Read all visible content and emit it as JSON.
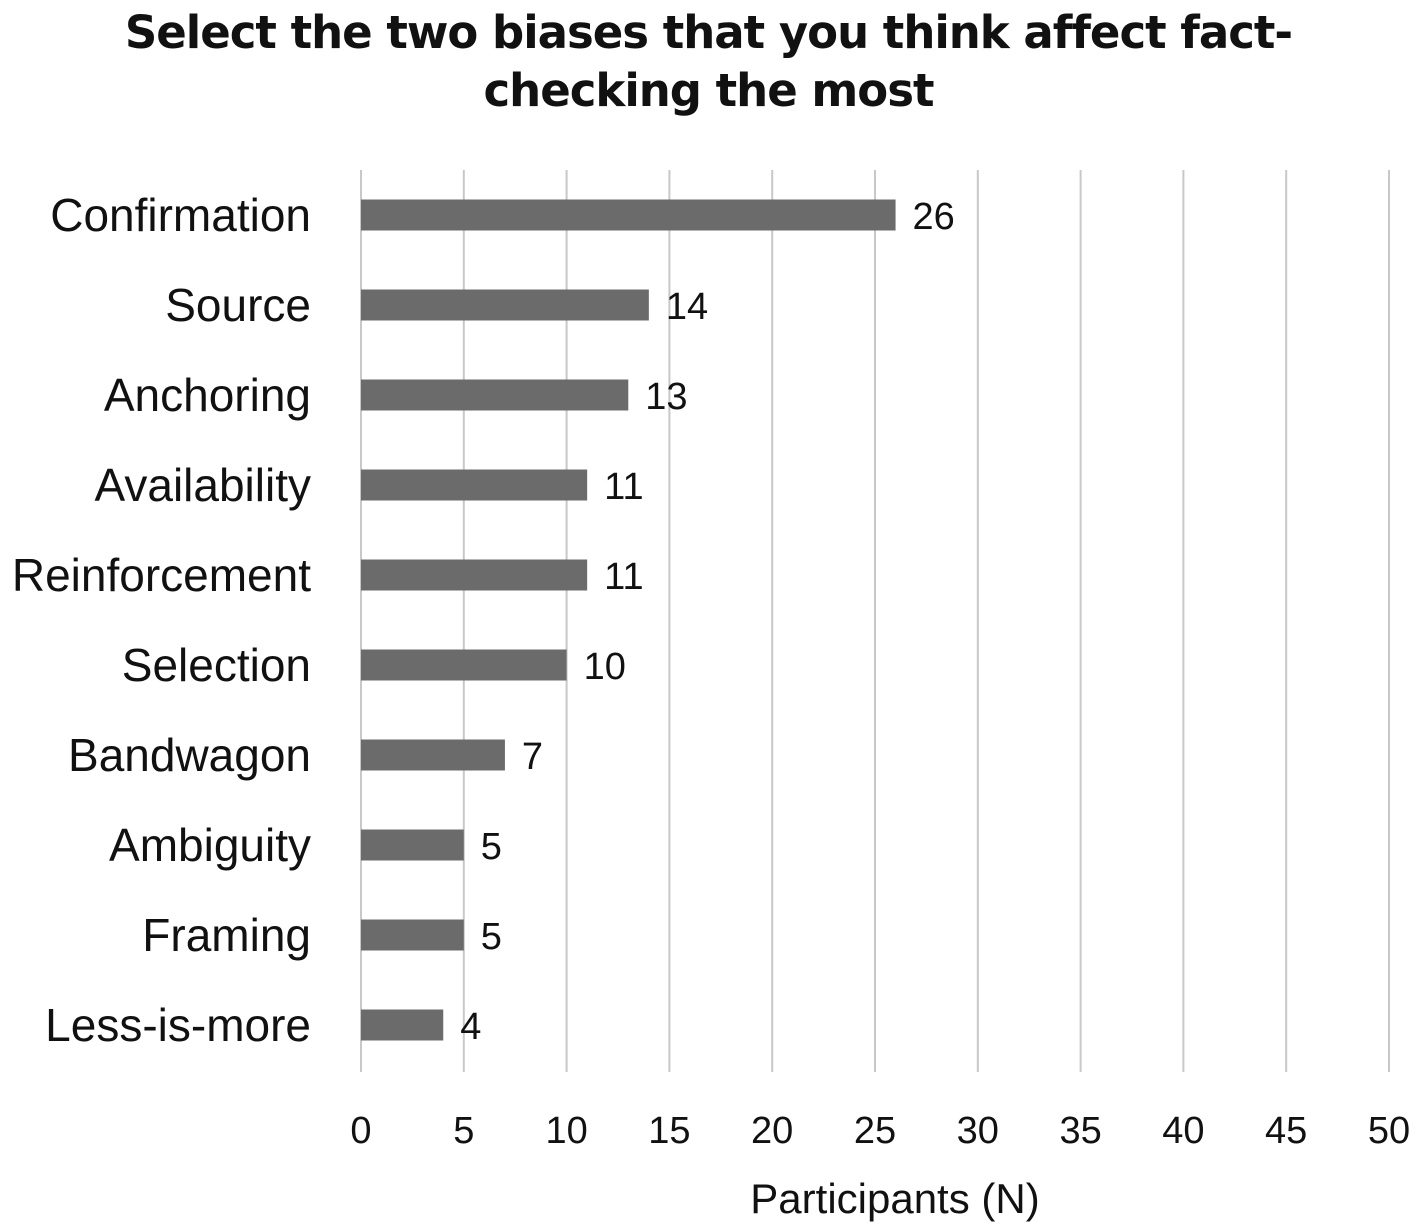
{
  "chart_data": {
    "type": "bar",
    "orientation": "horizontal",
    "title": "Select the two biases that you think affect fact-checking the most",
    "categories": [
      "Confirmation",
      "Source",
      "Anchoring",
      "Availability",
      "Reinforcement",
      "Selection",
      "Bandwagon",
      "Ambiguity",
      "Framing",
      "Less-is-more"
    ],
    "values": [
      26,
      14,
      13,
      11,
      11,
      10,
      7,
      5,
      5,
      4
    ],
    "xlabel": "Participants (N)",
    "ylabel": "",
    "xlim": [
      0,
      50
    ],
    "xticks": [
      0,
      5,
      10,
      15,
      20,
      25,
      30,
      35,
      40,
      45,
      50
    ],
    "grid": "vertical",
    "legend": "none",
    "bar_color": "#6b6b6b",
    "grid_color": "#c8c8c8"
  }
}
